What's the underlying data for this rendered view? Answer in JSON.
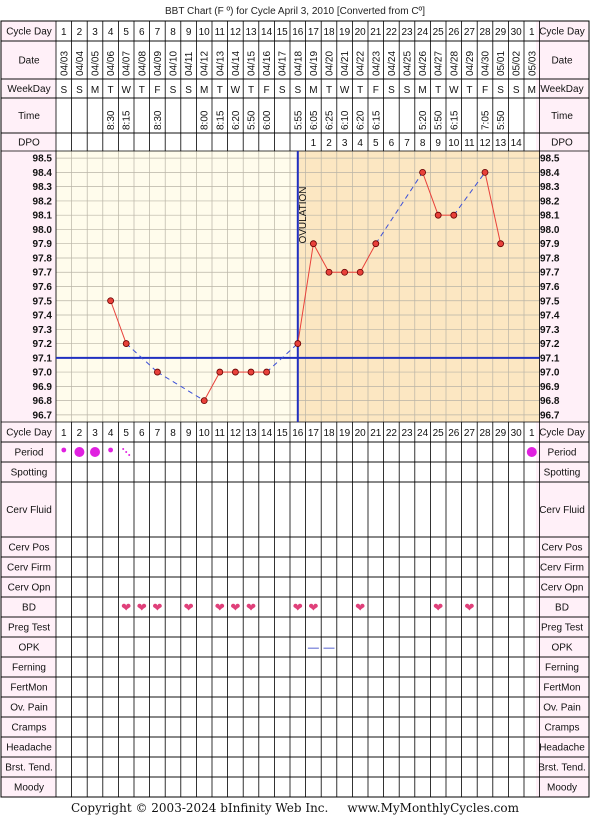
{
  "chart_data": {
    "type": "line",
    "title": "BBT Chart (F º) for Cycle April 3, 2010  [Converted from Cº]",
    "ylim": [
      96.7,
      98.5
    ],
    "y_ticks": [
      "98.5",
      "98.4",
      "98.3",
      "98.2",
      "98.1",
      "98.0",
      "97.9",
      "97.8",
      "97.7",
      "97.6",
      "97.5",
      "97.4",
      "97.3",
      "97.2",
      "97.1",
      "97.0",
      "96.9",
      "96.8",
      "96.7"
    ],
    "cycle_days": [
      "1",
      "2",
      "3",
      "4",
      "5",
      "6",
      "7",
      "8",
      "9",
      "10",
      "11",
      "12",
      "13",
      "14",
      "15",
      "16",
      "17",
      "18",
      "19",
      "20",
      "21",
      "22",
      "23",
      "24",
      "25",
      "26",
      "27",
      "28",
      "29",
      "30",
      "1"
    ],
    "dates": [
      "04/03",
      "04/04",
      "04/05",
      "04/06",
      "04/07",
      "04/08",
      "04/09",
      "04/10",
      "04/11",
      "04/12",
      "04/13",
      "04/14",
      "04/15",
      "04/16",
      "04/17",
      "04/18",
      "04/19",
      "04/20",
      "04/21",
      "04/22",
      "04/23",
      "04/24",
      "04/25",
      "04/26",
      "04/27",
      "04/28",
      "04/29",
      "04/30",
      "05/01",
      "05/02",
      "05/03"
    ],
    "weekdays": [
      "S",
      "S",
      "M",
      "T",
      "W",
      "T",
      "F",
      "S",
      "S",
      "M",
      "T",
      "W",
      "T",
      "F",
      "S",
      "S",
      "M",
      "T",
      "W",
      "T",
      "F",
      "S",
      "S",
      "M",
      "T",
      "W",
      "T",
      "F",
      "S",
      "S",
      "M"
    ],
    "times": [
      "",
      "",
      "",
      "8:30",
      "8:15",
      "",
      "8:30",
      "",
      "",
      "8:00",
      "8:15",
      "6:20",
      "5:50",
      "6:00",
      "",
      "5:55",
      "6:05",
      "6:25",
      "6:10",
      "6:20",
      "6:15",
      "",
      "",
      "5:20",
      "5:50",
      "6:15",
      "",
      "7:05",
      "5:50",
      "",
      ""
    ],
    "dpo": [
      "",
      "",
      "",
      "",
      "",
      "",
      "",
      "",
      "",
      "",
      "",
      "",
      "",
      "",
      "",
      "",
      "1",
      "2",
      "3",
      "4",
      "5",
      "6",
      "7",
      "8",
      "9",
      "10",
      "11",
      "12",
      "13",
      "14",
      ""
    ],
    "series": [
      {
        "values": [
          null,
          null,
          null,
          97.5,
          97.2,
          null,
          97.0,
          null,
          null,
          96.8,
          97.0,
          97.0,
          97.0,
          97.0,
          null,
          97.2,
          97.9,
          97.7,
          97.7,
          97.7,
          97.9,
          null,
          null,
          98.4,
          98.1,
          98.1,
          null,
          98.4,
          97.9,
          null,
          null
        ]
      }
    ],
    "coverline": 97.1,
    "ovulation_day": 16,
    "ovulation_label": "OVULATION"
  },
  "row_labels": {
    "cycle_day": "Cycle Day",
    "date": "Date",
    "weekday": "WeekDay",
    "time": "Time",
    "dpo": "DPO",
    "period": "Period",
    "spotting": "Spotting",
    "cerv_fluid": "Cerv Fluid",
    "cerv_pos": "Cerv Pos",
    "cerv_firm": "Cerv Firm",
    "cerv_opn": "Cerv Opn",
    "bd": "BD",
    "preg_test": "Preg Test",
    "opk": "OPK",
    "ferning": "Ferning",
    "fertmon": "FertMon",
    "ov_pain": "Ov. Pain",
    "cramps": "Cramps",
    "headache": "Headache",
    "brst_tend": "Brst. Tend.",
    "moody": "Moody"
  },
  "period": {
    "days": [
      1,
      2,
      3,
      4,
      5,
      31
    ],
    "sizes": [
      "small",
      "large",
      "large",
      "small",
      "spot",
      "large"
    ]
  },
  "bd_days": [
    5,
    6,
    7,
    9,
    11,
    12,
    13,
    16,
    17,
    20,
    25,
    27
  ],
  "bd_glyph": "❤",
  "opk_days": [
    17,
    18
  ],
  "opk_glyph": "—",
  "colors": {
    "pre_ovulation_bg": "#FFFCEC",
    "post_ovulation_bg": "#FCE7C2",
    "header_bg": "#FFF0F8",
    "temp_line": "#E8413A",
    "missing_line": "#3B4FD8",
    "coverline": "#2030C0",
    "ovulation_line": "#2030C0",
    "period": "#E020E0",
    "heart": "#E0407A"
  },
  "footer": "Copyright © 2003-2024 bInfinity Web Inc.     www.MyMonthlyCycles.com"
}
